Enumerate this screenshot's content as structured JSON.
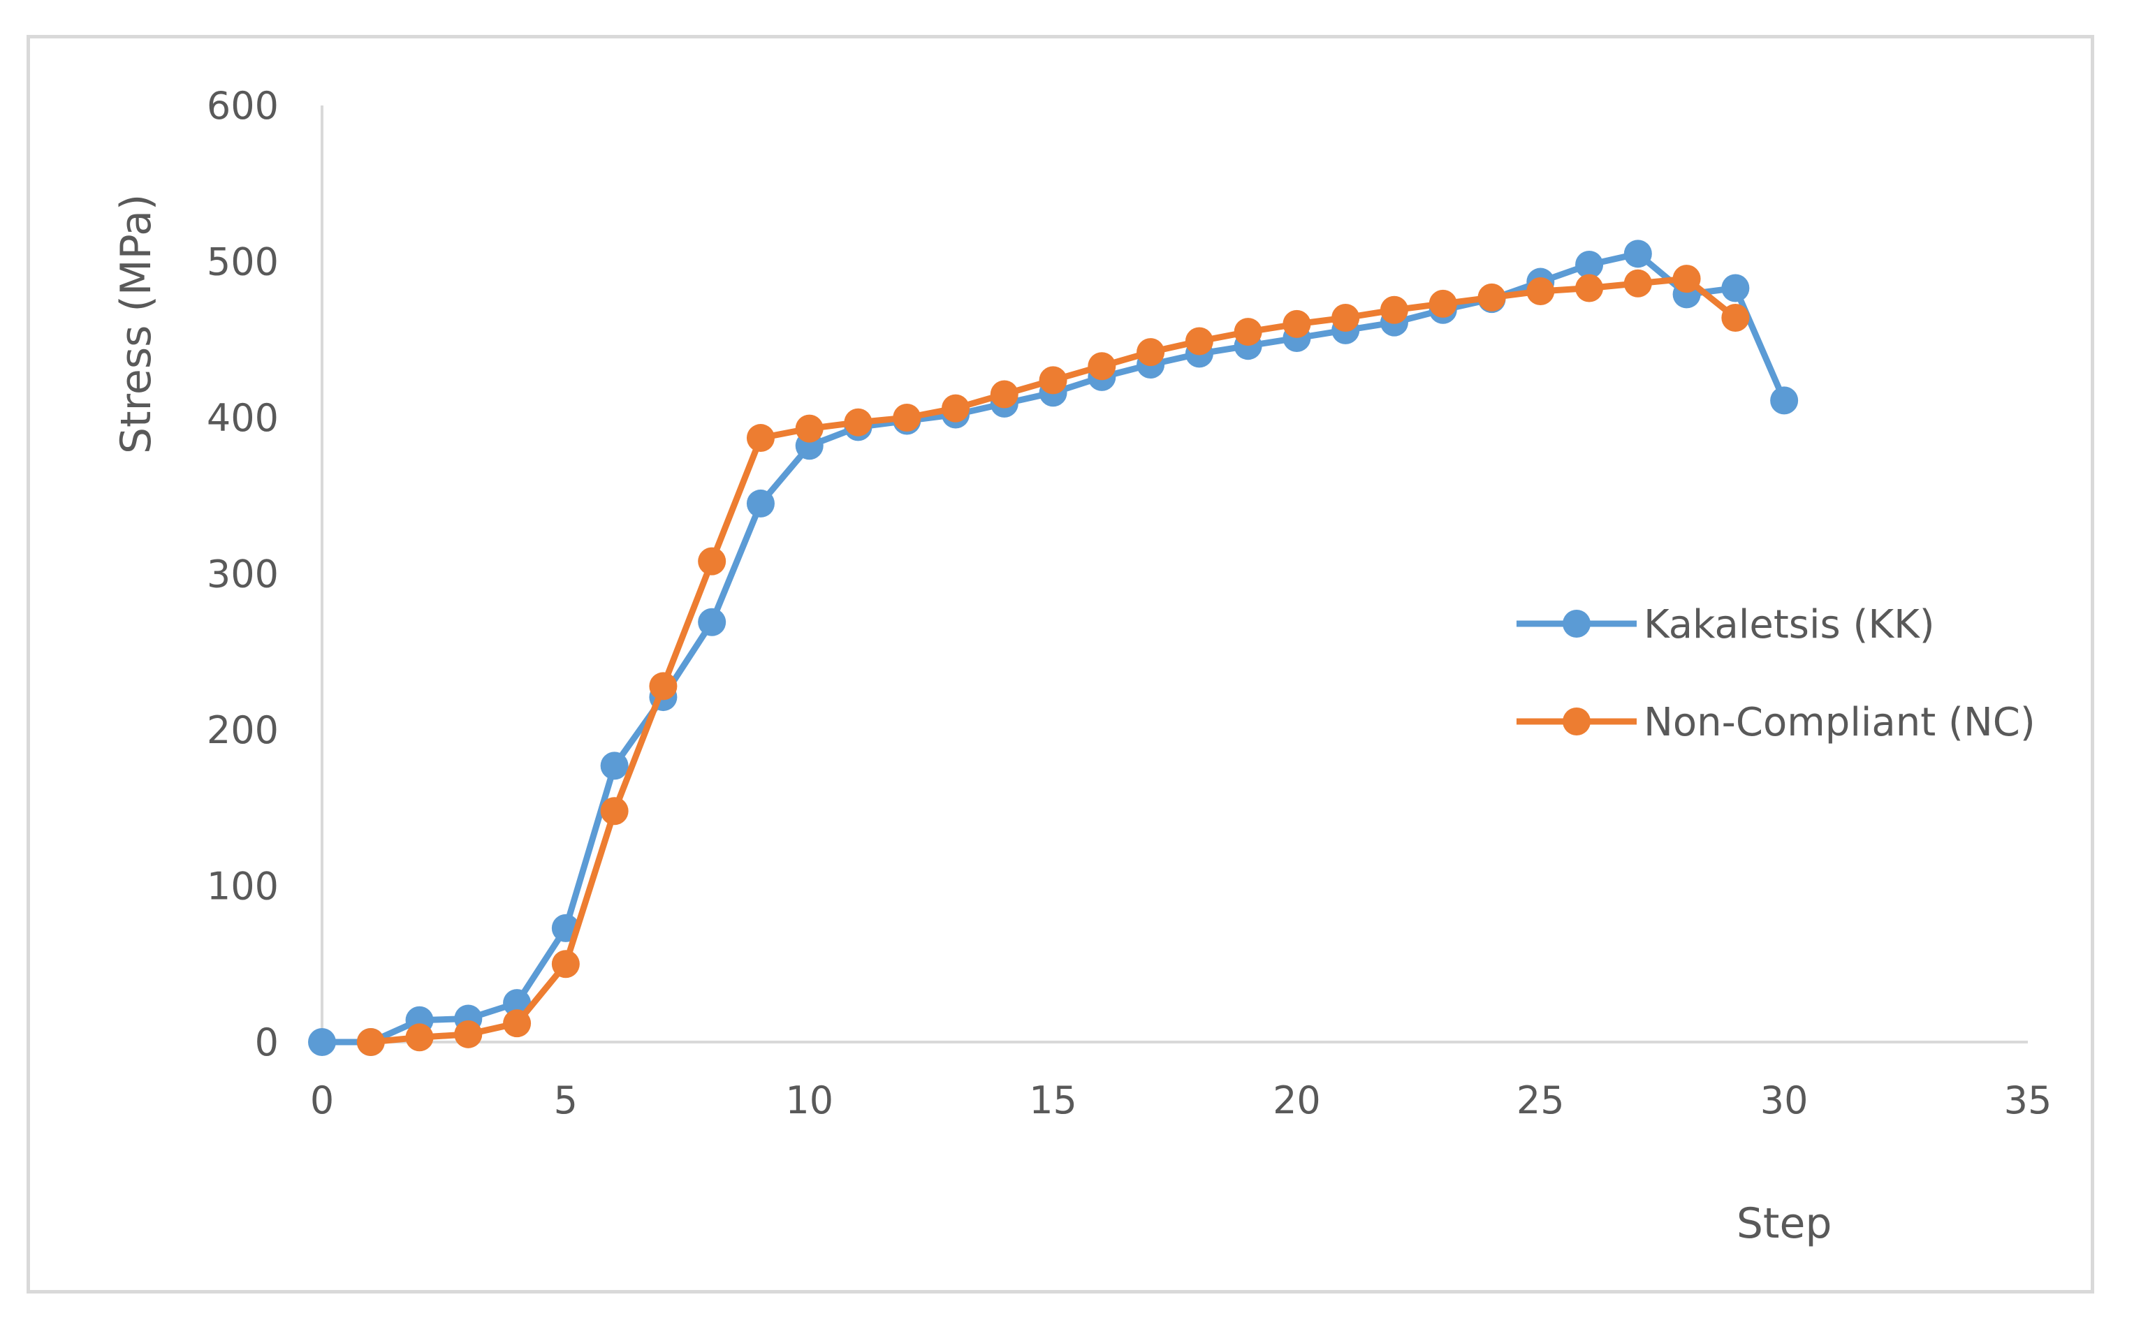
{
  "chart_data": {
    "type": "line",
    "title": "",
    "xlabel": "Step",
    "ylabel": "Stress (MPa)",
    "xlim": [
      0,
      35
    ],
    "ylim": [
      0,
      600
    ],
    "xticks": [
      0,
      5,
      10,
      15,
      20,
      25,
      30,
      35
    ],
    "yticks": [
      0,
      100,
      200,
      300,
      400,
      500,
      600
    ],
    "grid": false,
    "legend_position": "right",
    "series": [
      {
        "name": "Kakaletsis (KK)",
        "color": "#5b9bd5",
        "marker": "circle",
        "x": [
          0,
          1,
          2,
          3,
          4,
          5,
          6,
          7,
          8,
          9,
          10,
          11,
          12,
          13,
          14,
          15,
          16,
          17,
          18,
          19,
          20,
          21,
          22,
          23,
          24,
          25,
          26,
          27,
          28,
          29,
          30
        ],
        "y": [
          0,
          0,
          14,
          15,
          25,
          73,
          177,
          221,
          269,
          345,
          382,
          394,
          398,
          402,
          409,
          416,
          426,
          434,
          441,
          446,
          451,
          456,
          461,
          469,
          476,
          487,
          498,
          505,
          479,
          483,
          411
        ]
      },
      {
        "name": "Non-Compliant (NC)",
        "color": "#ed7d31",
        "marker": "circle",
        "x": [
          1,
          2,
          3,
          4,
          5,
          6,
          7,
          8,
          9,
          10,
          11,
          12,
          13,
          14,
          15,
          16,
          17,
          18,
          19,
          20,
          21,
          22,
          23,
          24,
          25,
          26,
          27,
          28,
          29
        ],
        "y": [
          0,
          3,
          5,
          12,
          50,
          148,
          228,
          308,
          387,
          393,
          397,
          400,
          406,
          415,
          424,
          433,
          442,
          449,
          455,
          460,
          464,
          469,
          473,
          477,
          481,
          483,
          486,
          489,
          464
        ]
      }
    ]
  }
}
